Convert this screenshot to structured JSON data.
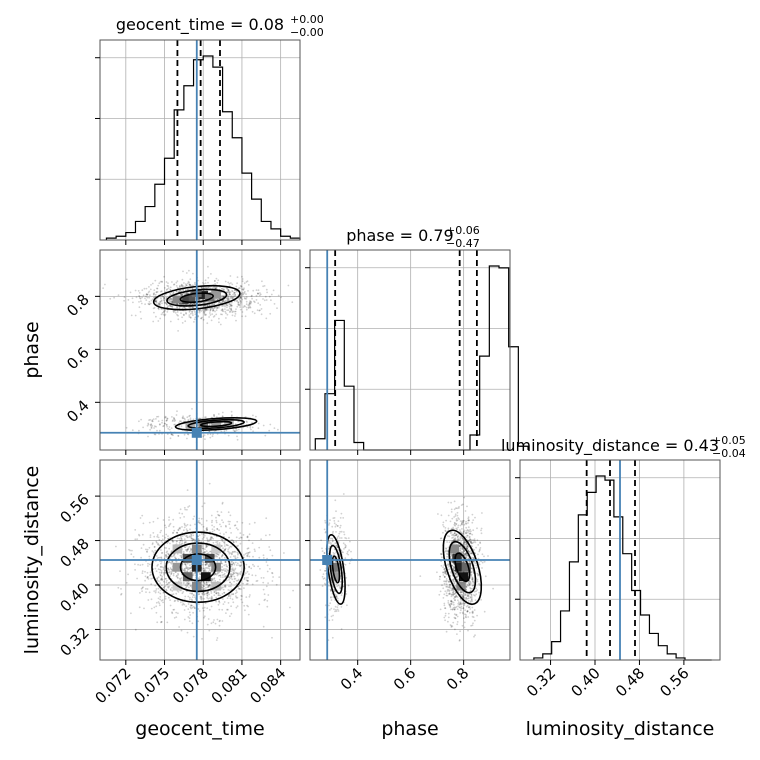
{
  "chart_data": {
    "type": "corner",
    "parameters": [
      "geocent_time",
      "phase",
      "luminosity_distance"
    ],
    "axis_labels": {
      "geocent_time": "geocent_time",
      "phase": "phase",
      "luminosity_distance": "luminosity_distance"
    },
    "ranges": {
      "geocent_time": [
        0.07,
        0.0855
      ],
      "phase": [
        0.22,
        0.975
      ],
      "luminosity_distance": [
        0.265,
        0.625
      ]
    },
    "ticks": {
      "geocent_time": {
        "values": [
          0.072,
          0.075,
          0.078,
          0.081,
          0.084
        ],
        "labels": [
          "0.072",
          "0.075",
          "0.078",
          "0.081",
          "0.084"
        ]
      },
      "phase": {
        "values": [
          0.4,
          0.6,
          0.8
        ],
        "labels": [
          "0.4",
          "0.6",
          "0.8"
        ]
      },
      "luminosity_distance": {
        "values": [
          0.32,
          0.4,
          0.48,
          0.56
        ],
        "labels": [
          "0.32",
          "0.40",
          "0.48",
          "0.56"
        ]
      }
    },
    "titles": {
      "geocent_time": {
        "base": "geocent_time = 0.08",
        "sup": "+0.00",
        "sub": "−0.00"
      },
      "phase": {
        "base": "phase = 0.79",
        "sup": "+0.06",
        "sub": "−0.47"
      },
      "luminosity_distance": {
        "base": "luminosity_distance = 0.43",
        "sup": "+0.05",
        "sub": "−0.04"
      }
    },
    "truths": {
      "geocent_time": 0.0775,
      "phase": 0.285,
      "luminosity_distance": 0.445
    },
    "quantiles": {
      "geocent_time": [
        0.076,
        0.0778,
        0.0793
      ],
      "phase": [
        0.315,
        0.785,
        0.85
      ],
      "luminosity_distance": [
        0.385,
        0.427,
        0.472
      ]
    },
    "histograms": {
      "geocent_time": {
        "edges_start": 0.0705,
        "bin_width": 0.00075,
        "counts": [
          1,
          2,
          4,
          10,
          18,
          30,
          44,
          70,
          83,
          97,
          99,
          93,
          69,
          55,
          36,
          22,
          10,
          6,
          2,
          1
        ]
      },
      "phase": {
        "edges_start": 0.24,
        "bin_width": 0.0365,
        "counts": [
          6,
          30,
          69,
          34,
          4,
          0,
          0,
          0,
          0,
          0,
          0,
          0,
          0,
          0,
          0,
          0,
          8,
          50,
          98,
          97,
          55,
          2
        ]
      },
      "luminosity_distance": {
        "edges_start": 0.29,
        "bin_width": 0.016,
        "counts": [
          1,
          3,
          9,
          24,
          48,
          71,
          82,
          90,
          88,
          70,
          52,
          34,
          22,
          13,
          7,
          3,
          1,
          0,
          0,
          0
        ]
      }
    },
    "grid": true
  }
}
